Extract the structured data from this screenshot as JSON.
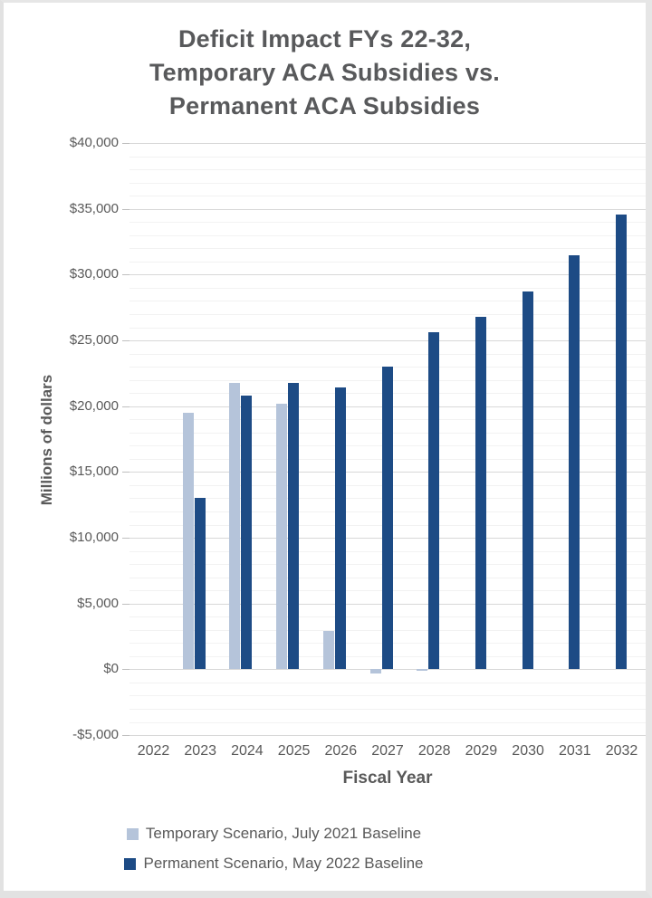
{
  "title": {
    "lines": [
      "Deficit Impact FYs 22-32,",
      "Temporary ACA Subsidies vs.",
      "Permanent ACA Subsidies"
    ],
    "color": "#58595b"
  },
  "y_axis": {
    "label": "Millions of dollars",
    "tick_labels": [
      "$40,000",
      "$35,000",
      "$30,000",
      "$25,000",
      "$20,000",
      "$15,000",
      "$10,000",
      "$5,000",
      "$0",
      "-$5,000"
    ]
  },
  "x_axis": {
    "label": "Fiscal Year",
    "categories": [
      "2022",
      "2023",
      "2024",
      "2025",
      "2026",
      "2027",
      "2028",
      "2029",
      "2030",
      "2031",
      "2032"
    ]
  },
  "legend": {
    "items": [
      {
        "label": "Temporary Scenario, July 2021 Baseline",
        "color": "#b5c4da"
      },
      {
        "label": "Permanent Scenario, May 2022 Baseline",
        "color": "#1d4b85"
      }
    ]
  },
  "colors": {
    "temporary_bar": "#b5c4da",
    "permanent_bar": "#1d4b85",
    "text": "#595959",
    "gridline_major": "#d8d8d8",
    "gridline_minor": "#f2f2f2"
  },
  "chart_data": {
    "type": "bar",
    "title": "Deficit Impact FYs 22-32, Temporary ACA Subsidies vs. Permanent ACA Subsidies",
    "xlabel": "Fiscal Year",
    "ylabel": "Millions of dollars",
    "categories": [
      "2022",
      "2023",
      "2024",
      "2025",
      "2026",
      "2027",
      "2028",
      "2029",
      "2030",
      "2031",
      "2032"
    ],
    "series": [
      {
        "name": "Temporary Scenario, July 2021 Baseline",
        "color": "#b5c4da",
        "values": [
          null,
          19500,
          21800,
          20200,
          2900,
          -300,
          -100,
          null,
          null,
          null,
          null
        ]
      },
      {
        "name": "Permanent Scenario, May 2022 Baseline",
        "color": "#1d4b85",
        "values": [
          null,
          13000,
          20800,
          21800,
          21400,
          23000,
          25600,
          26800,
          28700,
          31500,
          34600
        ]
      }
    ],
    "ylim": [
      -5000,
      40000
    ],
    "ytick_step": 5000,
    "minor_grid_step": 1000,
    "grid": "horizontal major + minor",
    "legend_position": "bottom",
    "units": "millions of dollars"
  }
}
